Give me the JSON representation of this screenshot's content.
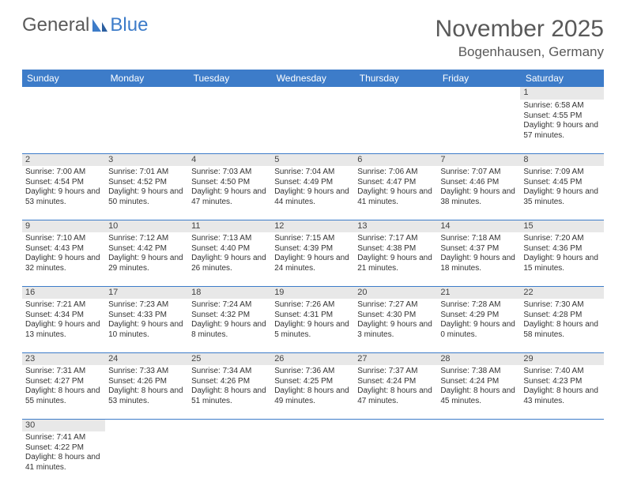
{
  "logo": {
    "text1": "General",
    "text2": "Blue"
  },
  "title": "November 2025",
  "location": "Bogenhausen, Germany",
  "colors": {
    "header_bg": "#3d7cc9",
    "daynum_bg": "#e8e8e8",
    "rule": "#3d7cc9",
    "text": "#595959"
  },
  "days": [
    "Sunday",
    "Monday",
    "Tuesday",
    "Wednesday",
    "Thursday",
    "Friday",
    "Saturday"
  ],
  "weeks": [
    [
      null,
      null,
      null,
      null,
      null,
      null,
      {
        "n": "1",
        "sr": "Sunrise: 6:58 AM",
        "ss": "Sunset: 4:55 PM",
        "dl": "Daylight: 9 hours and 57 minutes."
      }
    ],
    [
      {
        "n": "2",
        "sr": "Sunrise: 7:00 AM",
        "ss": "Sunset: 4:54 PM",
        "dl": "Daylight: 9 hours and 53 minutes."
      },
      {
        "n": "3",
        "sr": "Sunrise: 7:01 AM",
        "ss": "Sunset: 4:52 PM",
        "dl": "Daylight: 9 hours and 50 minutes."
      },
      {
        "n": "4",
        "sr": "Sunrise: 7:03 AM",
        "ss": "Sunset: 4:50 PM",
        "dl": "Daylight: 9 hours and 47 minutes."
      },
      {
        "n": "5",
        "sr": "Sunrise: 7:04 AM",
        "ss": "Sunset: 4:49 PM",
        "dl": "Daylight: 9 hours and 44 minutes."
      },
      {
        "n": "6",
        "sr": "Sunrise: 7:06 AM",
        "ss": "Sunset: 4:47 PM",
        "dl": "Daylight: 9 hours and 41 minutes."
      },
      {
        "n": "7",
        "sr": "Sunrise: 7:07 AM",
        "ss": "Sunset: 4:46 PM",
        "dl": "Daylight: 9 hours and 38 minutes."
      },
      {
        "n": "8",
        "sr": "Sunrise: 7:09 AM",
        "ss": "Sunset: 4:45 PM",
        "dl": "Daylight: 9 hours and 35 minutes."
      }
    ],
    [
      {
        "n": "9",
        "sr": "Sunrise: 7:10 AM",
        "ss": "Sunset: 4:43 PM",
        "dl": "Daylight: 9 hours and 32 minutes."
      },
      {
        "n": "10",
        "sr": "Sunrise: 7:12 AM",
        "ss": "Sunset: 4:42 PM",
        "dl": "Daylight: 9 hours and 29 minutes."
      },
      {
        "n": "11",
        "sr": "Sunrise: 7:13 AM",
        "ss": "Sunset: 4:40 PM",
        "dl": "Daylight: 9 hours and 26 minutes."
      },
      {
        "n": "12",
        "sr": "Sunrise: 7:15 AM",
        "ss": "Sunset: 4:39 PM",
        "dl": "Daylight: 9 hours and 24 minutes."
      },
      {
        "n": "13",
        "sr": "Sunrise: 7:17 AM",
        "ss": "Sunset: 4:38 PM",
        "dl": "Daylight: 9 hours and 21 minutes."
      },
      {
        "n": "14",
        "sr": "Sunrise: 7:18 AM",
        "ss": "Sunset: 4:37 PM",
        "dl": "Daylight: 9 hours and 18 minutes."
      },
      {
        "n": "15",
        "sr": "Sunrise: 7:20 AM",
        "ss": "Sunset: 4:36 PM",
        "dl": "Daylight: 9 hours and 15 minutes."
      }
    ],
    [
      {
        "n": "16",
        "sr": "Sunrise: 7:21 AM",
        "ss": "Sunset: 4:34 PM",
        "dl": "Daylight: 9 hours and 13 minutes."
      },
      {
        "n": "17",
        "sr": "Sunrise: 7:23 AM",
        "ss": "Sunset: 4:33 PM",
        "dl": "Daylight: 9 hours and 10 minutes."
      },
      {
        "n": "18",
        "sr": "Sunrise: 7:24 AM",
        "ss": "Sunset: 4:32 PM",
        "dl": "Daylight: 9 hours and 8 minutes."
      },
      {
        "n": "19",
        "sr": "Sunrise: 7:26 AM",
        "ss": "Sunset: 4:31 PM",
        "dl": "Daylight: 9 hours and 5 minutes."
      },
      {
        "n": "20",
        "sr": "Sunrise: 7:27 AM",
        "ss": "Sunset: 4:30 PM",
        "dl": "Daylight: 9 hours and 3 minutes."
      },
      {
        "n": "21",
        "sr": "Sunrise: 7:28 AM",
        "ss": "Sunset: 4:29 PM",
        "dl": "Daylight: 9 hours and 0 minutes."
      },
      {
        "n": "22",
        "sr": "Sunrise: 7:30 AM",
        "ss": "Sunset: 4:28 PM",
        "dl": "Daylight: 8 hours and 58 minutes."
      }
    ],
    [
      {
        "n": "23",
        "sr": "Sunrise: 7:31 AM",
        "ss": "Sunset: 4:27 PM",
        "dl": "Daylight: 8 hours and 55 minutes."
      },
      {
        "n": "24",
        "sr": "Sunrise: 7:33 AM",
        "ss": "Sunset: 4:26 PM",
        "dl": "Daylight: 8 hours and 53 minutes."
      },
      {
        "n": "25",
        "sr": "Sunrise: 7:34 AM",
        "ss": "Sunset: 4:26 PM",
        "dl": "Daylight: 8 hours and 51 minutes."
      },
      {
        "n": "26",
        "sr": "Sunrise: 7:36 AM",
        "ss": "Sunset: 4:25 PM",
        "dl": "Daylight: 8 hours and 49 minutes."
      },
      {
        "n": "27",
        "sr": "Sunrise: 7:37 AM",
        "ss": "Sunset: 4:24 PM",
        "dl": "Daylight: 8 hours and 47 minutes."
      },
      {
        "n": "28",
        "sr": "Sunrise: 7:38 AM",
        "ss": "Sunset: 4:24 PM",
        "dl": "Daylight: 8 hours and 45 minutes."
      },
      {
        "n": "29",
        "sr": "Sunrise: 7:40 AM",
        "ss": "Sunset: 4:23 PM",
        "dl": "Daylight: 8 hours and 43 minutes."
      }
    ],
    [
      {
        "n": "30",
        "sr": "Sunrise: 7:41 AM",
        "ss": "Sunset: 4:22 PM",
        "dl": "Daylight: 8 hours and 41 minutes."
      },
      null,
      null,
      null,
      null,
      null,
      null
    ]
  ]
}
